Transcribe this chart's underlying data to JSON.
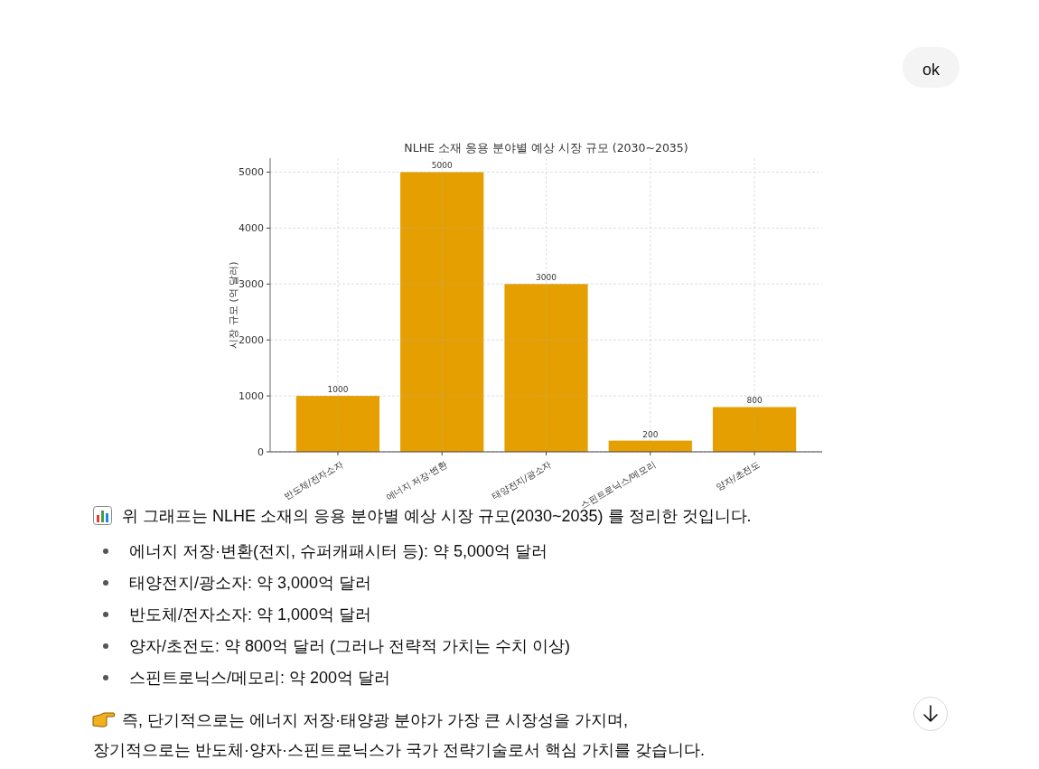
{
  "chart_data": {
    "type": "bar",
    "title": "NLHE 소재 응용 분야별 예상 시장 규모 (2030~2035)",
    "ylabel": "시장 규모 (억 달러)",
    "categories": [
      "반도체/전자소자",
      "에너지 저장·변환",
      "태양전지/광소자",
      "스핀트로닉스/메모리",
      "양자/초전도"
    ],
    "values": [
      1000,
      5000,
      3000,
      200,
      800
    ],
    "color": "#e69f00",
    "ylim": [
      0,
      5250
    ],
    "yticks": [
      0,
      1000,
      2000,
      3000,
      4000,
      5000
    ],
    "grid": true,
    "data_labels": true,
    "annotations": [
      "ok",
      "위 그래프는 NLHE 소재의 응용 분야별 예상 시장 규모(2030~2035) 를 정리한 것입니다.",
      "에너지 저장·변환(전지, 슈퍼캐패시터 등): 약 5,000억 달러",
      "태양전지/광소자: 약 3,000억 달러",
      "반도체/전자소자: 약 1,000억 달러",
      "양자/초전도: 약 800억 달러 (그러나 전략적 가치는 수치 이상)",
      "스핀트로닉스/메모리: 약 200억 달러",
      "즉, 단기적으로는 에너지 저장·태양광 분야가 가장 큰 시장성을 가지며,",
      "장기적으로는 반도체·양자·스핀트로닉스가 국가 전략기술로서 핵심 가치를 갖습니다."
    ]
  }
}
